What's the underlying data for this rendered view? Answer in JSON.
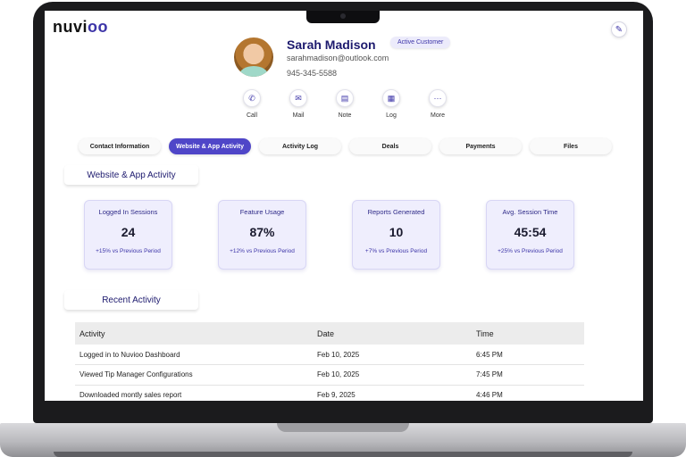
{
  "brand": {
    "name": "nuvi",
    "mark": "oo"
  },
  "profile": {
    "name": "Sarah Madison",
    "status_badge": "Active Customer",
    "email": "sarahmadison@outlook.com",
    "phone": "945-345-5588"
  },
  "actions": [
    {
      "label": "Call",
      "icon": "phone-icon",
      "glyph": "✆"
    },
    {
      "label": "Mail",
      "icon": "mail-icon",
      "glyph": "✉"
    },
    {
      "label": "Note",
      "icon": "note-icon",
      "glyph": "▤"
    },
    {
      "label": "Log",
      "icon": "clipboard-icon",
      "glyph": "▦"
    },
    {
      "label": "More",
      "icon": "more-icon",
      "glyph": "···"
    }
  ],
  "tabs": [
    {
      "label": "Contact Information",
      "active": false
    },
    {
      "label": "Website & App Activity",
      "active": true
    },
    {
      "label": "Activity Log",
      "active": false
    },
    {
      "label": "Deals",
      "active": false
    },
    {
      "label": "Payments",
      "active": false
    },
    {
      "label": "Files",
      "active": false
    }
  ],
  "activity_section": {
    "title": "Website & App Activity",
    "cards": [
      {
        "title": "Logged In Sessions",
        "value": "24",
        "delta": "+15% vs  Previous Period"
      },
      {
        "title": "Feature Usage",
        "value": "87%",
        "delta": "+12% vs  Previous Period"
      },
      {
        "title": "Reports Generated",
        "value": "10",
        "delta": "+7% vs  Previous Period"
      },
      {
        "title": "Avg. Session Time",
        "value": "45:54",
        "delta": "+25% vs  Previous Period"
      }
    ]
  },
  "recent_section": {
    "title": "Recent Activity",
    "columns": [
      "Activity",
      "Date",
      "Time"
    ],
    "rows": [
      [
        "Logged in to Nuvioo Dashboard",
        "Feb 10, 2025",
        "6:45 PM"
      ],
      [
        "Viewed Tip Manager Configurations",
        "Feb 10, 2025",
        "7:45 PM"
      ],
      [
        "Downloaded montly sales report",
        "Feb 9, 2025",
        "4:46 PM"
      ]
    ]
  },
  "colors": {
    "accent": "#4f46c8",
    "heading": "#1d1a6e",
    "card_bg": "#efeefd"
  },
  "edit_icon": "pencil-icon"
}
